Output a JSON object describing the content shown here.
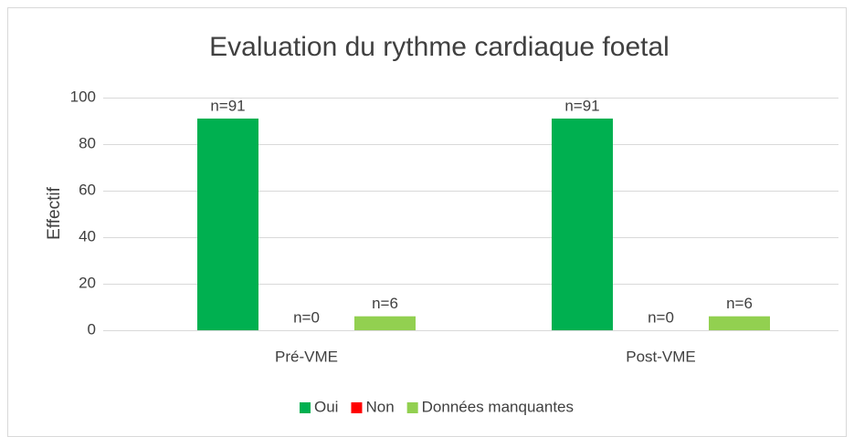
{
  "chart_data": {
    "type": "bar",
    "title": "Evaluation du rythme cardiaque foetal",
    "ylabel": "Effectif",
    "categories": [
      "Pré-VME",
      "Post-VME"
    ],
    "series": [
      {
        "name": "Oui",
        "color": "#00b050",
        "values": [
          91,
          91
        ],
        "value_labels": [
          "n=91",
          "n=91"
        ]
      },
      {
        "name": "Non",
        "color": "#ff0000",
        "values": [
          0,
          0
        ],
        "value_labels": [
          "n=0",
          "n=0"
        ]
      },
      {
        "name": "Données manquantes",
        "color": "#92d050",
        "values": [
          6,
          6
        ],
        "value_labels": [
          "n=6",
          "n=6"
        ]
      }
    ],
    "ylim": [
      0,
      100
    ],
    "yticks": [
      0,
      20,
      40,
      60,
      80,
      100
    ],
    "grid": true,
    "legend": "bottom"
  }
}
